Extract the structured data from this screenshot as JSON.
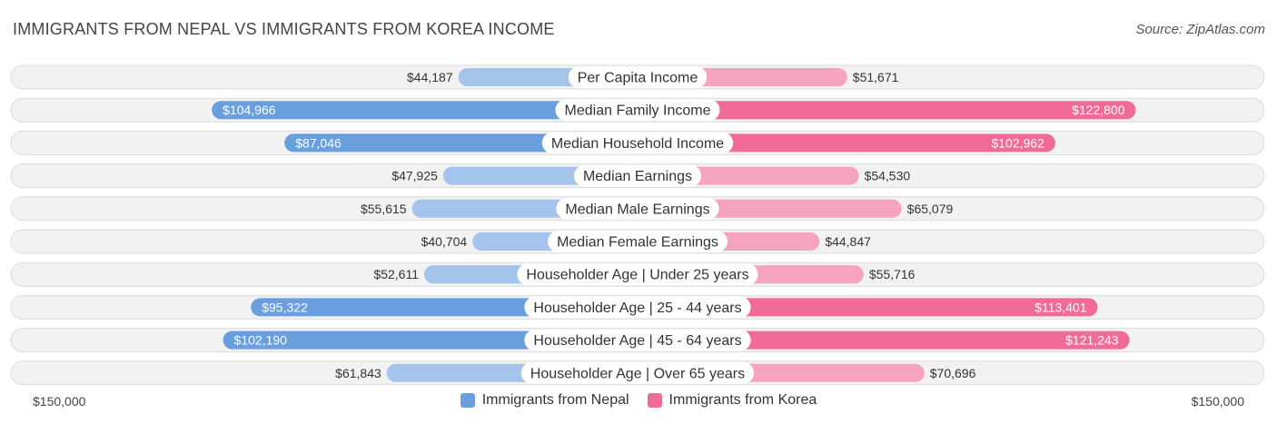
{
  "header": {
    "title": "IMMIGRANTS FROM NEPAL VS IMMIGRANTS FROM KOREA INCOME",
    "source": "Source: ZipAtlas.com"
  },
  "colors": {
    "nepal_strong": "#6a9fdf",
    "nepal_light": "#a4c4eb",
    "korea_strong": "#f06c96",
    "korea_light": "#f5a3bf"
  },
  "axis": {
    "left_label": "$150,000",
    "right_label": "$150,000"
  },
  "legend": {
    "nepal": "Immigrants from Nepal",
    "korea": "Immigrants from Korea"
  },
  "chart_data": {
    "type": "bar",
    "orientation": "horizontal-diverging",
    "title": "IMMIGRANTS FROM NEPAL VS IMMIGRANTS FROM KOREA INCOME",
    "xlim": [
      0,
      150000
    ],
    "categories": [
      "Per Capita Income",
      "Median Family Income",
      "Median Household Income",
      "Median Earnings",
      "Median Male Earnings",
      "Median Female Earnings",
      "Householder Age | Under 25 years",
      "Householder Age | 25 - 44 years",
      "Householder Age | 45 - 64 years",
      "Householder Age | Over 65 years"
    ],
    "series": [
      {
        "name": "Immigrants from Nepal",
        "values": [
          44187,
          104966,
          87046,
          47925,
          55615,
          40704,
          52611,
          95322,
          102190,
          61843
        ],
        "labels": [
          "$44,187",
          "$104,966",
          "$87,046",
          "$47,925",
          "$55,615",
          "$40,704",
          "$52,611",
          "$95,322",
          "$102,190",
          "$61,843"
        ]
      },
      {
        "name": "Immigrants from Korea",
        "values": [
          51671,
          122800,
          102962,
          54530,
          65079,
          44847,
          55716,
          113401,
          121243,
          70696
        ],
        "labels": [
          "$51,671",
          "$122,800",
          "$102,962",
          "$54,530",
          "$65,079",
          "$44,847",
          "$55,716",
          "$113,401",
          "$121,243",
          "$70,696"
        ]
      }
    ]
  }
}
